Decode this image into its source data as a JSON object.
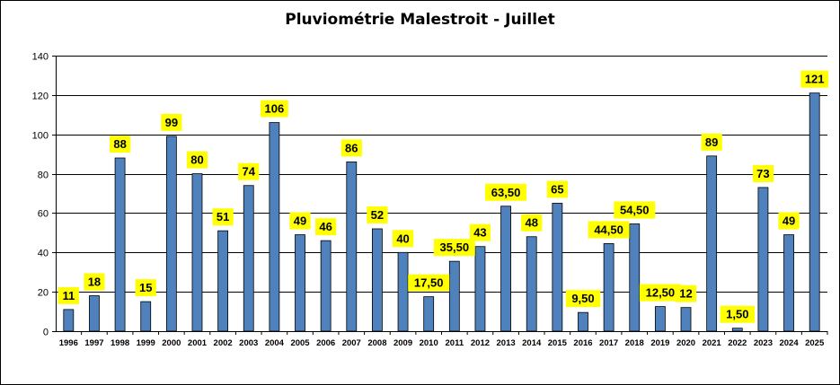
{
  "chart_data": {
    "type": "bar",
    "title": "Pluviométrie Malestroit - Juillet",
    "xlabel": "",
    "ylabel": "",
    "ylim": [
      0,
      140
    ],
    "yticks": [
      "0",
      "20",
      "40",
      "60",
      "80",
      "100",
      "120",
      "140"
    ],
    "grid": true,
    "legend": "none",
    "bar_color": "#4F81BD",
    "label_bg_color": "#FFFF00",
    "categories": [
      "1996",
      "1997",
      "1998",
      "1999",
      "2000",
      "2001",
      "2002",
      "2003",
      "2004",
      "2005",
      "2006",
      "2007",
      "2008",
      "2009",
      "2010",
      "2011",
      "2012",
      "2013",
      "2014",
      "2015",
      "2016",
      "2017",
      "2018",
      "2019",
      "2020",
      "2021",
      "2022",
      "2023",
      "2024",
      "2025"
    ],
    "values": [
      11,
      18,
      88,
      15,
      99,
      80,
      51,
      74,
      106,
      49,
      46,
      86,
      52,
      40,
      17.5,
      35.5,
      43,
      63.5,
      48,
      65,
      9.5,
      44.5,
      54.5,
      12.5,
      12,
      89,
      1.5,
      73,
      49,
      121
    ],
    "data_labels": [
      "11",
      "18",
      "88",
      "15",
      "99",
      "80",
      "51",
      "74",
      "106",
      "49",
      "46",
      "86",
      "52",
      "40",
      "17,50",
      "35,50",
      "43",
      "63,50",
      "48",
      "65",
      "9,50",
      "44,50",
      "54,50",
      "12,50",
      "12",
      "89",
      "1,50",
      "73",
      "49",
      "121"
    ]
  }
}
